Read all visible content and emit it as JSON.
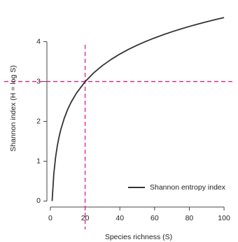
{
  "chart_data": {
    "type": "line",
    "title": "",
    "xlabel": "Species richness (S)",
    "ylabel": "Shannon index (H = log S)",
    "xlim": [
      -2,
      104
    ],
    "ylim": [
      -0.15,
      4.8
    ],
    "x_ticks": [
      0,
      20,
      40,
      60,
      80,
      100
    ],
    "y_ticks": [
      0,
      1,
      2,
      3,
      4
    ],
    "x_tick_labels": [
      "0",
      "20",
      "40",
      "60",
      "80",
      "100"
    ],
    "y_tick_labels": [
      "0",
      "1",
      "2",
      "3",
      "4"
    ],
    "grid": false,
    "legend_position": "bottom-right",
    "series": [
      {
        "name": "Shannon entropy index",
        "color": "#333333",
        "x": [
          1,
          2,
          3,
          4,
          5,
          6,
          8,
          10,
          12,
          15,
          20,
          25,
          30,
          35,
          40,
          45,
          50,
          55,
          60,
          65,
          70,
          75,
          80,
          85,
          90,
          95,
          100
        ],
        "y": [
          0.0,
          0.693,
          1.099,
          1.386,
          1.609,
          1.792,
          2.079,
          2.303,
          2.485,
          2.708,
          2.996,
          3.219,
          3.401,
          3.555,
          3.689,
          3.807,
          3.912,
          4.007,
          4.094,
          4.174,
          4.248,
          4.317,
          4.382,
          4.443,
          4.5,
          4.554,
          4.605
        ]
      }
    ],
    "reference_lines": [
      {
        "orientation": "vertical",
        "value": 20,
        "color": "#e0218a"
      },
      {
        "orientation": "horizontal",
        "value": 3,
        "color": "#e0218a"
      }
    ]
  }
}
